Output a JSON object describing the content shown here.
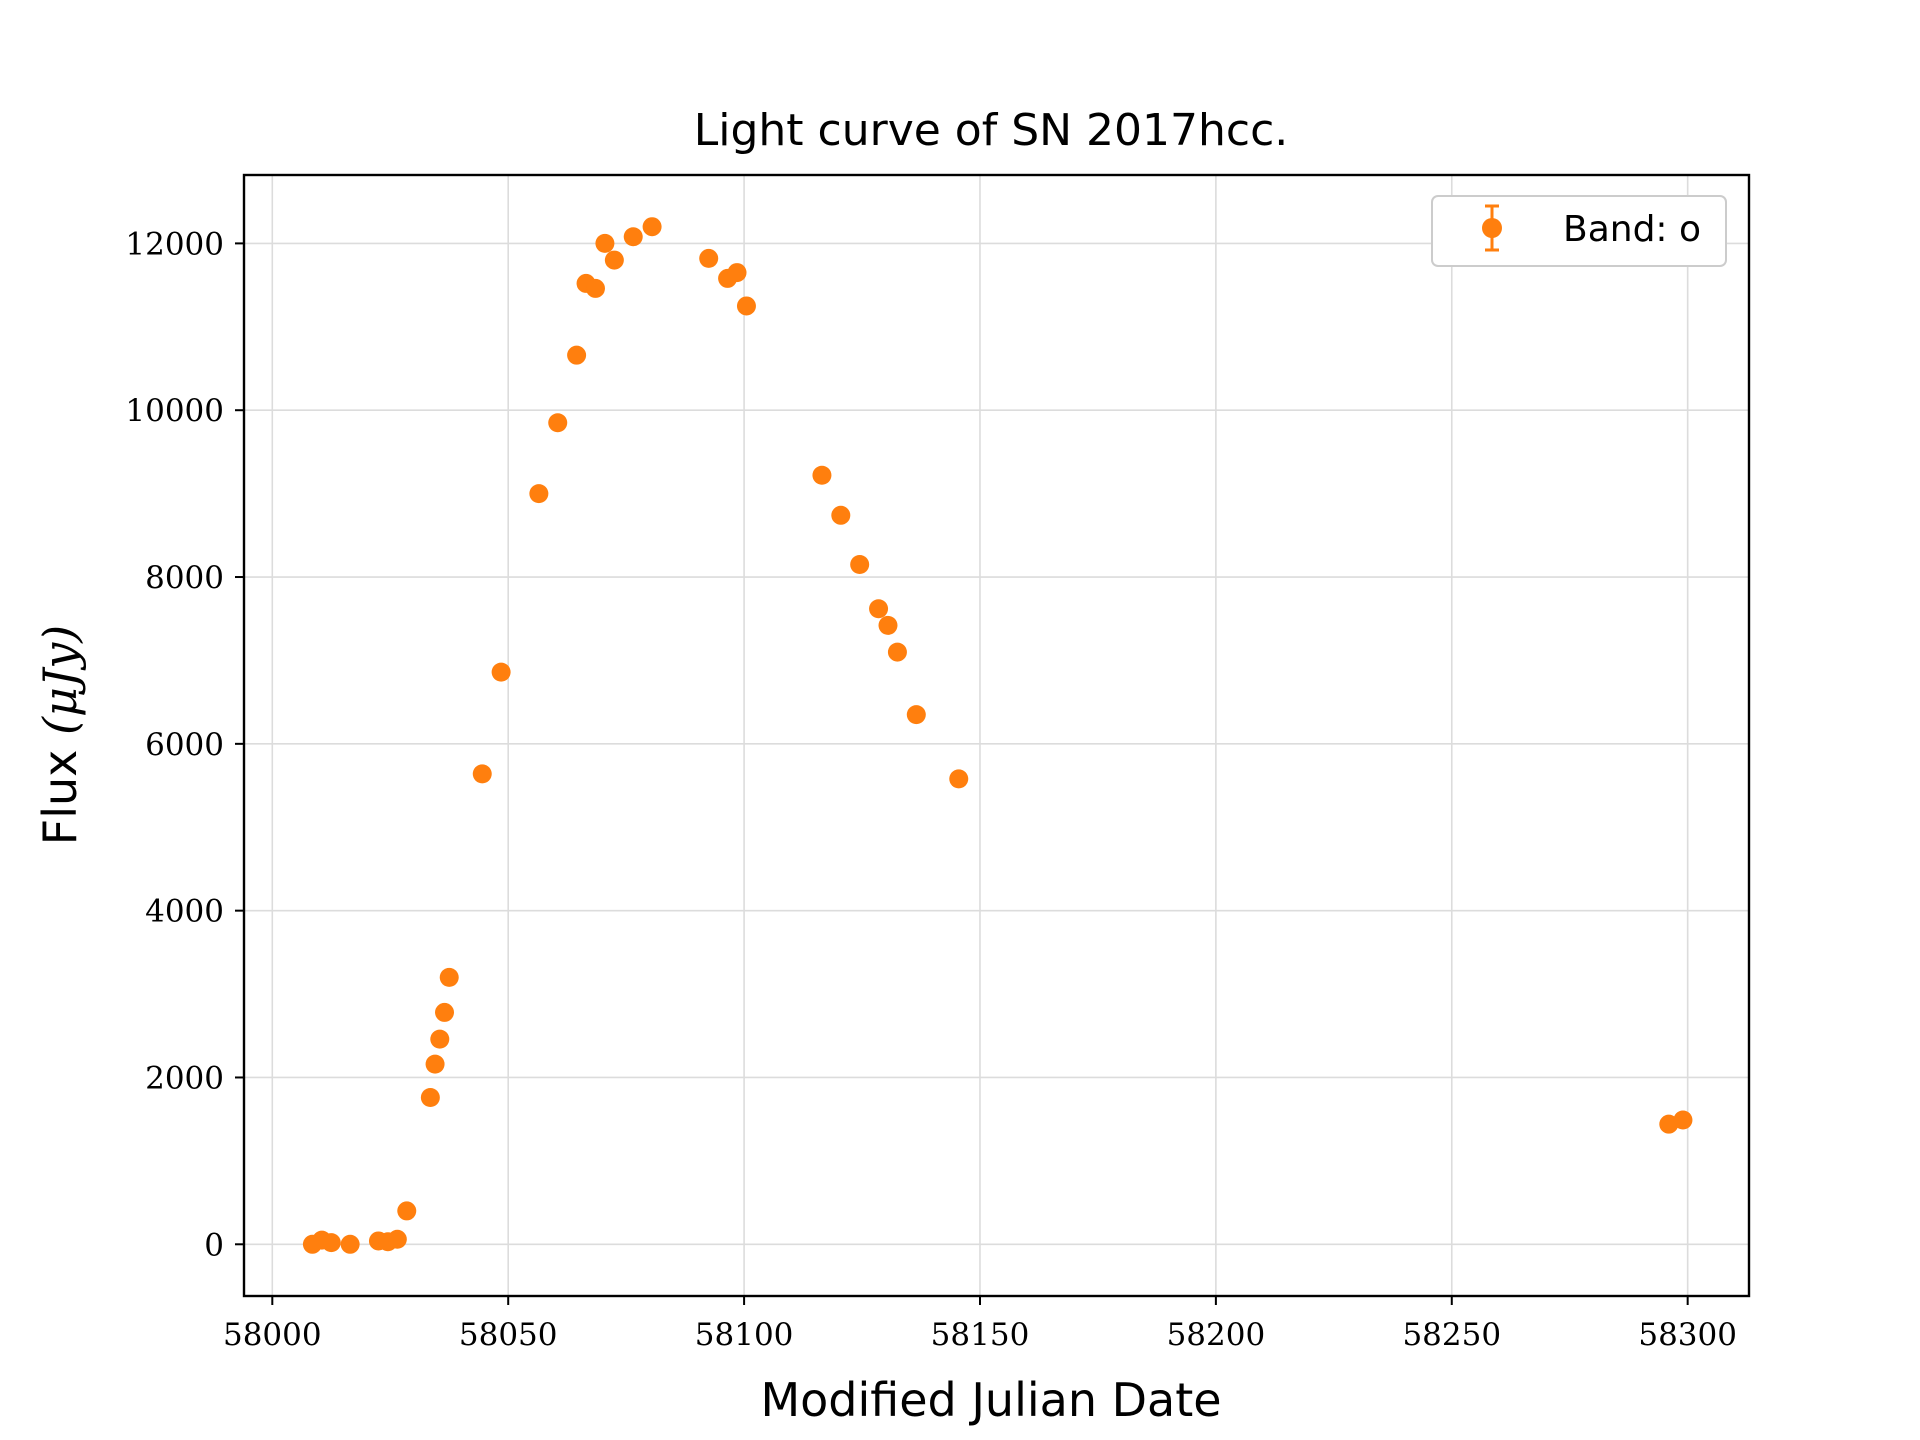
{
  "chart_data": {
    "type": "scatter",
    "title": "Light curve of SN 2017hcc.",
    "xlabel": "Modified Julian Date",
    "ylabel_text": "Flux ",
    "ylabel_math": "(μJy)",
    "xlim": [
      57994,
      58313
    ],
    "ylim": [
      -620,
      12820
    ],
    "xticks": [
      58000,
      58050,
      58100,
      58150,
      58200,
      58250,
      58300
    ],
    "yticks": [
      0,
      2000,
      4000,
      6000,
      8000,
      10000,
      12000
    ],
    "grid": true,
    "legend_position": "top-right",
    "color": "#ff7f0e",
    "series": [
      {
        "name": "Band: o",
        "x": [
          58008.5,
          58010.5,
          58012.5,
          58016.5,
          58022.5,
          58024.5,
          58026.5,
          58028.5,
          58033.5,
          58034.5,
          58035.5,
          58036.5,
          58037.5,
          58044.5,
          58048.5,
          58056.5,
          58060.5,
          58064.5,
          58066.5,
          58068.5,
          58070.5,
          58072.5,
          58076.5,
          58080.5,
          58092.5,
          58096.5,
          58098.5,
          58100.5,
          58116.5,
          58120.5,
          58124.5,
          58128.5,
          58130.5,
          58132.5,
          58136.5,
          58145.5,
          58296.0,
          58299.0
        ],
        "y": [
          0,
          50,
          20,
          0,
          40,
          30,
          60,
          400,
          1760,
          2160,
          2460,
          2780,
          3200,
          5640,
          6860,
          9000,
          9850,
          10660,
          11520,
          11460,
          12000,
          11800,
          12080,
          12200,
          11820,
          11580,
          11650,
          11250,
          9220,
          8740,
          8150,
          7620,
          7420,
          7100,
          6350,
          5580,
          1440,
          1490
        ]
      }
    ]
  }
}
